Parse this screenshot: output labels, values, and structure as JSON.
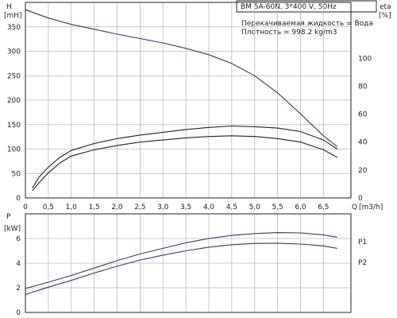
{
  "chart_data": [
    {
      "panel": "top",
      "type": "line",
      "model_label": "BM 5A-60N, 3*400 V, 50Hz",
      "info_lines": [
        "Перекачиваемая жидкость = Вода",
        "Плотность = 998.2 kg/m3"
      ],
      "left_axis": {
        "label": "H",
        "unit": "[mH]",
        "ticks": [
          0,
          50,
          100,
          150,
          200,
          250,
          300,
          350
        ],
        "ylim": [
          0,
          400
        ]
      },
      "right_axis": {
        "label": "eta",
        "unit": "[%]",
        "ticks": [
          0,
          20,
          40,
          60,
          80,
          100
        ],
        "ylim": [
          0,
          140
        ]
      },
      "x_axis": {
        "label": "Q",
        "unit": "[m3/h]",
        "ticks": [
          "0",
          "0,5",
          "1,0",
          "1,5",
          "2,0",
          "2,5",
          "3,0",
          "3,5",
          "4,0",
          "4,5",
          "5,0",
          "5,5",
          "6,0",
          "6,5"
        ],
        "xlim": [
          0,
          7.1
        ]
      },
      "series": [
        {
          "axis": "left",
          "color": "#2c3e66",
          "x": [
            0,
            0.5,
            1.0,
            1.5,
            2.0,
            2.5,
            3.0,
            3.5,
            4.0,
            4.5,
            5.0,
            5.5,
            6.0,
            6.5,
            6.8
          ],
          "y": [
            385,
            368,
            355,
            345,
            335,
            326,
            317,
            306,
            293,
            275,
            250,
            215,
            172,
            127,
            105
          ]
        },
        {
          "axis": "right",
          "color": "#222222",
          "x": [
            0.15,
            0.3,
            0.5,
            0.75,
            1.0,
            1.5,
            2.0,
            2.5,
            3.0,
            3.5,
            4.0,
            4.5,
            5.0,
            5.5,
            6.0,
            6.5,
            6.8
          ],
          "y": [
            7,
            15,
            22,
            29,
            34,
            39,
            42.5,
            45,
            47,
            49,
            50.5,
            51.5,
            51,
            50,
            47.5,
            41.5,
            35
          ]
        },
        {
          "axis": "right",
          "color": "#222222",
          "x": [
            0.15,
            0.3,
            0.5,
            0.75,
            1.0,
            1.5,
            2.0,
            2.5,
            3.0,
            3.5,
            4.0,
            4.5,
            5.0,
            5.5,
            6.0,
            6.5,
            6.8
          ],
          "y": [
            5,
            11,
            18,
            25,
            30,
            34.5,
            37.5,
            40,
            41.5,
            43,
            44,
            44.5,
            44,
            42.5,
            40,
            34.5,
            29
          ]
        }
      ]
    },
    {
      "panel": "bottom",
      "type": "line",
      "left_axis": {
        "label": "P",
        "unit": "[kW]",
        "ticks": [
          0,
          2,
          4,
          6
        ],
        "ylim": [
          0,
          8
        ]
      },
      "series": [
        {
          "name": "P1",
          "color": "#2c3e66",
          "x": [
            0,
            0.5,
            1.0,
            1.5,
            2.0,
            2.5,
            3.0,
            3.5,
            4.0,
            4.5,
            5.0,
            5.5,
            6.0,
            6.5,
            6.8
          ],
          "y": [
            1.95,
            2.45,
            3.0,
            3.6,
            4.2,
            4.75,
            5.2,
            5.65,
            6.0,
            6.25,
            6.4,
            6.48,
            6.45,
            6.3,
            6.1
          ]
        },
        {
          "name": "P2",
          "color": "#2c3e66",
          "x": [
            0,
            0.5,
            1.0,
            1.5,
            2.0,
            2.5,
            3.0,
            3.5,
            4.0,
            4.5,
            5.0,
            5.5,
            6.0,
            6.5,
            6.8
          ],
          "y": [
            1.45,
            2.05,
            2.6,
            3.2,
            3.75,
            4.25,
            4.65,
            5.0,
            5.3,
            5.5,
            5.6,
            5.62,
            5.55,
            5.4,
            5.2
          ]
        }
      ]
    }
  ]
}
